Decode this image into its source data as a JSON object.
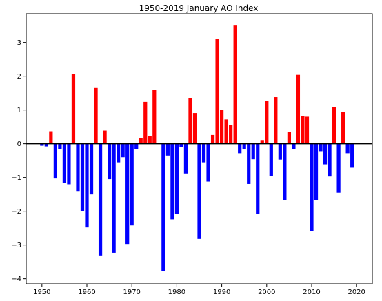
{
  "chart_data": {
    "type": "bar",
    "title": "1950-2019 January AO Index",
    "xlabel": "",
    "ylabel": "",
    "xlim": [
      1946.5,
      2023.5
    ],
    "ylim": [
      -4.15,
      3.85
    ],
    "xticks": [
      1950,
      1960,
      1970,
      1980,
      1990,
      2000,
      2010,
      2020
    ],
    "yticks": [
      -4,
      -3,
      -2,
      -1,
      0,
      1,
      2,
      3
    ],
    "grid": false,
    "legend": "none",
    "colors": {
      "positive": "#ff0000",
      "negative": "#0000ff",
      "zero_line": "#000000"
    },
    "years": [
      1950,
      1951,
      1952,
      1953,
      1954,
      1955,
      1956,
      1957,
      1958,
      1959,
      1960,
      1961,
      1962,
      1963,
      1964,
      1965,
      1966,
      1967,
      1968,
      1969,
      1970,
      1971,
      1972,
      1973,
      1974,
      1975,
      1976,
      1977,
      1978,
      1979,
      1980,
      1981,
      1982,
      1983,
      1984,
      1985,
      1986,
      1987,
      1988,
      1989,
      1990,
      1991,
      1992,
      1993,
      1994,
      1995,
      1996,
      1997,
      1998,
      1999,
      2000,
      2001,
      2002,
      2003,
      2004,
      2005,
      2006,
      2007,
      2008,
      2009,
      2010,
      2011,
      2012,
      2013,
      2014,
      2015,
      2016,
      2017,
      2018,
      2019
    ],
    "values": [
      -0.06,
      -0.08,
      0.37,
      -1.03,
      -0.15,
      -1.15,
      -1.2,
      2.06,
      -1.42,
      -2.0,
      -2.48,
      -1.5,
      1.65,
      -3.31,
      0.39,
      -1.05,
      -3.23,
      -0.55,
      -0.4,
      -2.97,
      -2.42,
      -0.15,
      0.17,
      1.24,
      0.23,
      1.6,
      0.03,
      -3.77,
      -0.35,
      -2.24,
      -2.07,
      -0.1,
      -0.88,
      1.36,
      0.91,
      -2.82,
      -0.55,
      -1.12,
      0.26,
      3.11,
      1.01,
      0.72,
      0.55,
      3.5,
      -0.28,
      -0.15,
      -1.19,
      -0.46,
      -2.08,
      0.11,
      1.27,
      -0.96,
      1.38,
      -0.47,
      -1.68,
      0.35,
      -0.17,
      2.04,
      0.82,
      0.8,
      -2.59,
      -1.68,
      -0.22,
      -0.61,
      -0.97,
      1.09,
      -1.45,
      0.94,
      -0.28,
      -0.71
    ]
  }
}
